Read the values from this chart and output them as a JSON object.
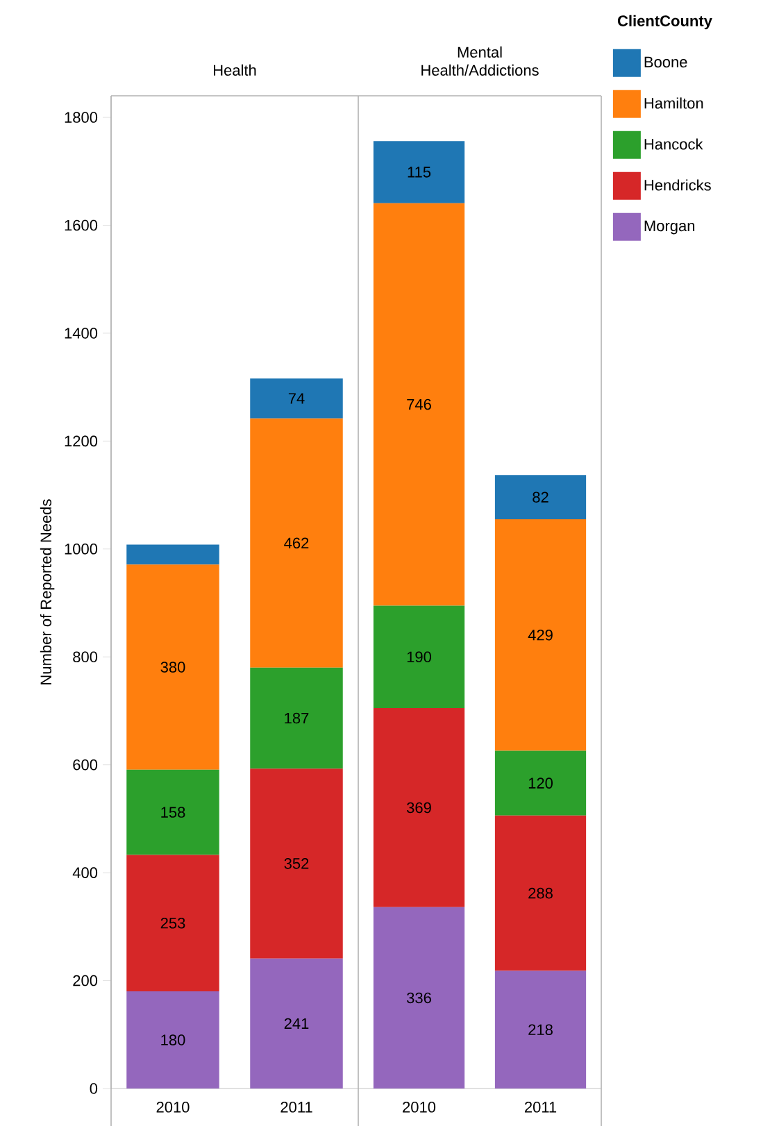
{
  "chart_data": [
    {
      "type": "bar",
      "title": "Health",
      "categories": [
        "2010",
        "2011"
      ],
      "stacked": true,
      "ylabel": "Number of Reported Needs",
      "ylim": [
        0,
        1840
      ],
      "yticks": [
        0,
        200,
        400,
        600,
        800,
        1000,
        1200,
        1400,
        1600,
        1800
      ],
      "series": [
        {
          "color": "#9467bd",
          "values": [
            180,
            241
          ],
          "value_labels": [
            "180",
            "241"
          ]
        },
        {
          "color": "#d62728",
          "values": [
            253,
            352
          ],
          "value_labels": [
            "253",
            "352"
          ]
        },
        {
          "color": "#2ca02c",
          "values": [
            158,
            187
          ],
          "value_labels": [
            "158",
            "187"
          ]
        },
        {
          "color": "#ff7f0e",
          "values": [
            380,
            462
          ],
          "value_labels": [
            "380",
            "462"
          ]
        },
        {
          "color": "#1f77b4",
          "values": [
            37,
            74
          ],
          "value_labels": [
            null,
            "74"
          ]
        }
      ]
    },
    {
      "type": "bar",
      "title": "Mental Health/Addictions",
      "categories": [
        "2010",
        "2011"
      ],
      "stacked": true,
      "ylim": [
        0,
        1840
      ],
      "yticks": [
        0,
        200,
        400,
        600,
        800,
        1000,
        1200,
        1400,
        1600,
        1800
      ],
      "tick_labels": "x",
      "legend": "right",
      "legend_title": "ClientCounty",
      "series": [
        {
          "name": "Morgan",
          "color": "#9467bd",
          "values": [
            336,
            218
          ],
          "value_labels": [
            "336",
            "218"
          ]
        },
        {
          "name": "Hendricks",
          "color": "#d62728",
          "values": [
            369,
            288
          ],
          "value_labels": [
            "369",
            "288"
          ]
        },
        {
          "name": "Hancock",
          "color": "#2ca02c",
          "values": [
            190,
            120
          ],
          "value_labels": [
            "190",
            "120"
          ]
        },
        {
          "name": "Hamilton",
          "color": "#ff7f0e",
          "values": [
            746,
            429
          ],
          "value_labels": [
            "746",
            "429"
          ]
        },
        {
          "name": "Boone",
          "color": "#1f77b4",
          "values": [
            115,
            82
          ],
          "value_labels": [
            "115",
            "82"
          ]
        }
      ]
    }
  ]
}
